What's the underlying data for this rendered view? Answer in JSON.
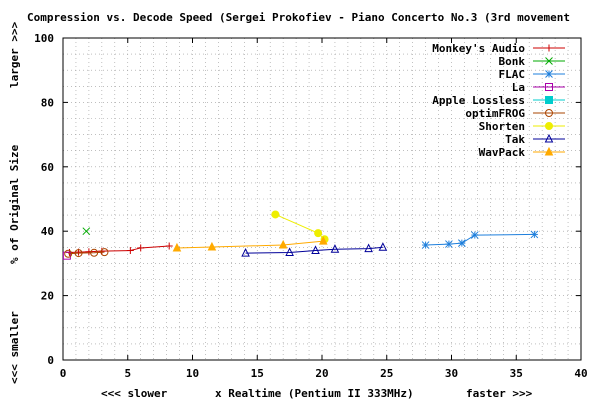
{
  "chart_data": {
    "type": "line",
    "title": "Compression vs. Decode Speed (Sergei Prokofiev - Piano Concerto No.3 (3rd movement",
    "xlabel": "x Realtime (Pentium II 333MHz)",
    "xlabel_left": "<<< slower",
    "xlabel_right": "faster >>>",
    "ylabel": "% of Original Size",
    "ylabel_top": "larger >>>",
    "ylabel_bottom": "<<< smaller",
    "xlim": [
      0,
      40
    ],
    "ylim": [
      0,
      100
    ],
    "xticks": [
      "0",
      "5",
      "10",
      "15",
      "20",
      "25",
      "30",
      "35",
      "40"
    ],
    "yticks": [
      "0",
      "20",
      "40",
      "60",
      "80",
      "100"
    ],
    "grid": true,
    "legend_position": "top-right",
    "series": [
      {
        "name": "Monkey's Audio",
        "color": "#cc0000",
        "marker": "plus",
        "x": [
          0.5,
          1.2,
          2.0,
          3.0,
          5.2,
          6.0,
          8.2
        ],
        "y": [
          33.4,
          33.5,
          33.6,
          33.8,
          34.0,
          34.8,
          35.4
        ]
      },
      {
        "name": "Bonk",
        "color": "#00aa00",
        "marker": "cross",
        "x": [
          1.8
        ],
        "y": [
          40.0
        ]
      },
      {
        "name": "FLAC",
        "color": "#1e7fdc",
        "marker": "star",
        "x": [
          28.0,
          29.8,
          30.8,
          31.8,
          36.4
        ],
        "y": [
          35.7,
          36.0,
          36.3,
          38.8,
          39.0
        ]
      },
      {
        "name": "La",
        "color": "#aa00aa",
        "marker": "square",
        "x": [
          0.3
        ],
        "y": [
          32.4
        ]
      },
      {
        "name": "Apple Lossless",
        "color": "#00cccc",
        "marker": "filled-square",
        "x": [],
        "y": []
      },
      {
        "name": "optimFROG",
        "color": "#aa4400",
        "marker": "circle",
        "x": [
          0.4,
          1.2,
          2.4,
          3.2
        ],
        "y": [
          33.0,
          33.2,
          33.3,
          33.5
        ]
      },
      {
        "name": "Shorten",
        "color": "#eeee00",
        "marker": "filled-circle",
        "x": [
          16.4,
          19.7,
          20.2
        ],
        "y": [
          45.2,
          39.4,
          37.5
        ]
      },
      {
        "name": "Tak",
        "color": "#000099",
        "marker": "triangle",
        "x": [
          14.1,
          17.5,
          19.5,
          21.0,
          23.6,
          24.7
        ],
        "y": [
          33.2,
          33.4,
          34.0,
          34.4,
          34.6,
          35.0
        ]
      },
      {
        "name": "WavPack",
        "color": "#ffaa00",
        "marker": "filled-triangle",
        "x": [
          8.8,
          11.5,
          17.0,
          20.1
        ],
        "y": [
          34.8,
          35.1,
          35.7,
          36.9
        ]
      }
    ]
  }
}
